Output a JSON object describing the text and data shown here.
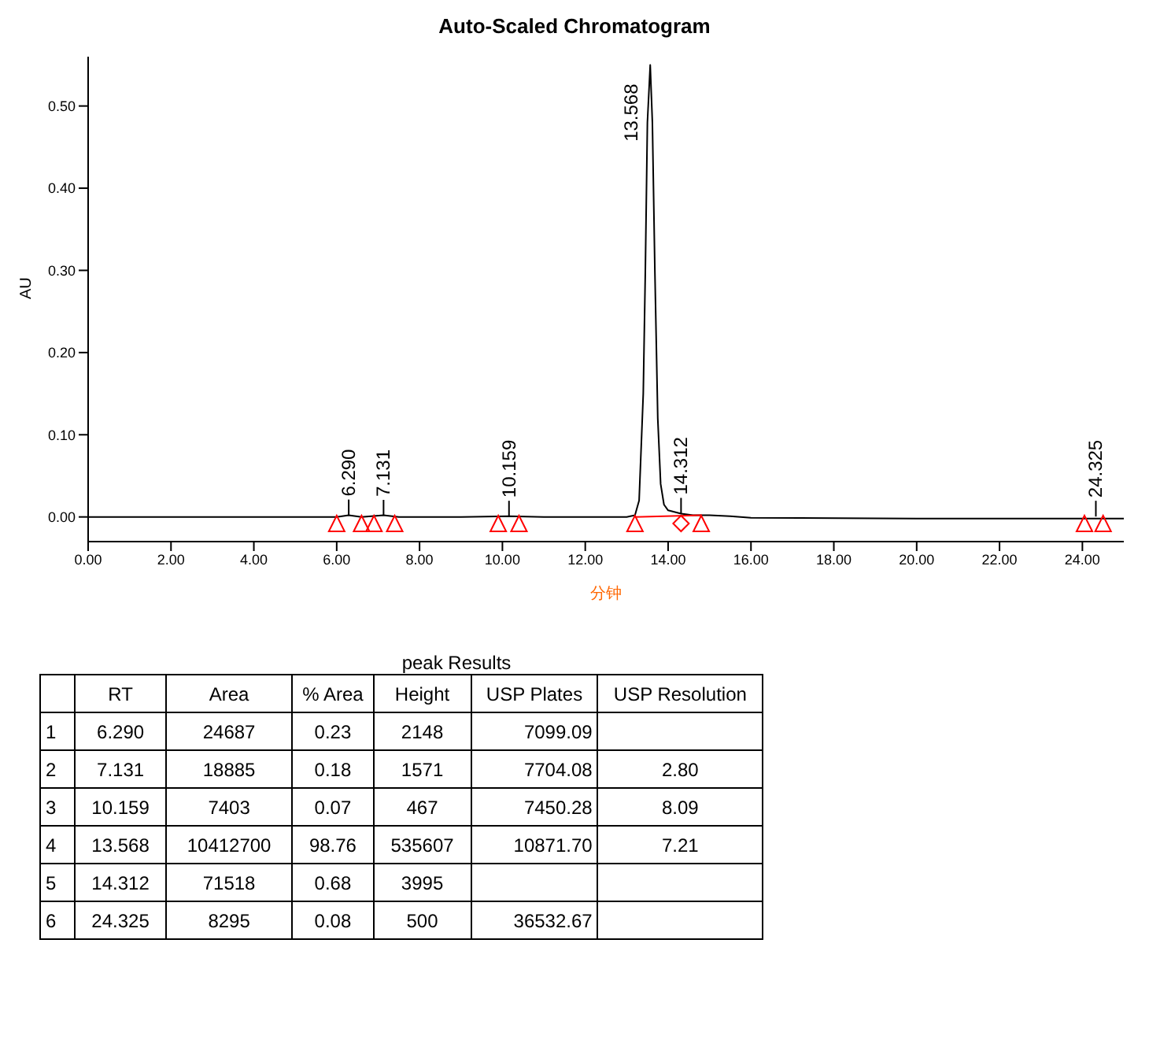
{
  "chart_data": {
    "type": "line",
    "title": "Auto-Scaled Chromatogram",
    "xlabel": "分钟",
    "ylabel": "AU",
    "xlim": [
      0,
      25
    ],
    "ylim": [
      -0.03,
      0.56
    ],
    "xticks": [
      {
        "value": 0,
        "label": "0.00"
      },
      {
        "value": 2,
        "label": "2.00"
      },
      {
        "value": 4,
        "label": "4.00"
      },
      {
        "value": 6,
        "label": "6.00"
      },
      {
        "value": 8,
        "label": "8.00"
      },
      {
        "value": 10,
        "label": "10.00"
      },
      {
        "value": 12,
        "label": "12.00"
      },
      {
        "value": 14,
        "label": "14.00"
      },
      {
        "value": 16,
        "label": "16.00"
      },
      {
        "value": 18,
        "label": "18.00"
      },
      {
        "value": 20,
        "label": "20.00"
      },
      {
        "value": 22,
        "label": "22.00"
      },
      {
        "value": 24,
        "label": "24.00"
      }
    ],
    "yticks": [
      {
        "value": 0,
        "label": "0.00"
      },
      {
        "value": 0.1,
        "label": "0.10"
      },
      {
        "value": 0.2,
        "label": "0.20"
      },
      {
        "value": 0.3,
        "label": "0.30"
      },
      {
        "value": 0.4,
        "label": "0.40"
      },
      {
        "value": 0.5,
        "label": "0.50"
      }
    ],
    "series": [
      {
        "color": "#000000",
        "marker": "none",
        "x": [
          0,
          2,
          4,
          6,
          6.29,
          6.6,
          7.131,
          7.5,
          9,
          10.159,
          11,
          12,
          13,
          13.2,
          13.3,
          13.4,
          13.45,
          13.5,
          13.568,
          13.62,
          13.68,
          13.75,
          13.82,
          13.9,
          14,
          14.312,
          14.6,
          15,
          15.5,
          16,
          20,
          24,
          24.325,
          25
        ],
        "values": [
          0,
          0,
          0,
          0,
          0.002,
          0,
          0.002,
          0,
          0,
          0.001,
          0,
          0,
          0,
          0.002,
          0.02,
          0.15,
          0.3,
          0.48,
          0.55,
          0.48,
          0.3,
          0.12,
          0.04,
          0.015,
          0.008,
          0.004,
          0.002,
          0.002,
          0.001,
          -0.001,
          -0.002,
          -0.002,
          -0.002,
          -0.002
        ]
      },
      {
        "color": "#ff0000",
        "marker": "none",
        "x": [
          13.2,
          14.8
        ],
        "values": [
          0,
          0.002
        ]
      },
      {
        "type": "scatter",
        "color": "#ff0000",
        "marker": "triangle",
        "x": [
          6.0,
          6.6,
          6.9,
          7.4,
          9.9,
          10.4,
          13.2,
          14.8,
          24.05,
          24.5
        ],
        "values": [
          -0.008,
          -0.008,
          -0.008,
          -0.008,
          -0.008,
          -0.008,
          -0.008,
          -0.008,
          -0.008,
          -0.008
        ]
      },
      {
        "type": "scatter",
        "color": "#ff0000",
        "marker": "diamond",
        "x": [
          14.312
        ],
        "values": [
          -0.008
        ]
      }
    ],
    "annotations": [
      {
        "text": "6.290",
        "x": 6.29,
        "y": 0.002
      },
      {
        "text": "7.131",
        "x": 7.131,
        "y": 0.0016
      },
      {
        "text": "10.159",
        "x": 10.159,
        "y": 0.0005
      },
      {
        "text": "13.568",
        "x": 13.568,
        "y": 0.55
      },
      {
        "text": "14.312",
        "x": 14.312,
        "y": 0.004
      },
      {
        "text": "24.325",
        "x": 24.325,
        "y": 0.0005
      },
      "peak Results",
      null,
      "RT",
      "Area",
      "% Area",
      "Height",
      "USP Plates",
      "USP Resolution",
      "1",
      "6.290",
      "24687",
      "0.23",
      "2148",
      "7099.09",
      null,
      "2",
      "7.131",
      "18885",
      "0.18",
      "1571",
      "7704.08",
      "2.80",
      "3",
      "10.159",
      "7403",
      "0.07",
      "467",
      "7450.28",
      "8.09",
      "4",
      "13.568",
      "10412700",
      "98.76",
      "535607",
      "10871.70",
      "7.21",
      "5",
      "14.312",
      "71518",
      "0.68",
      "3995",
      null,
      null,
      "6",
      "24.325",
      "8295",
      "0.08",
      "500",
      "36532.67",
      null
    ]
  }
}
